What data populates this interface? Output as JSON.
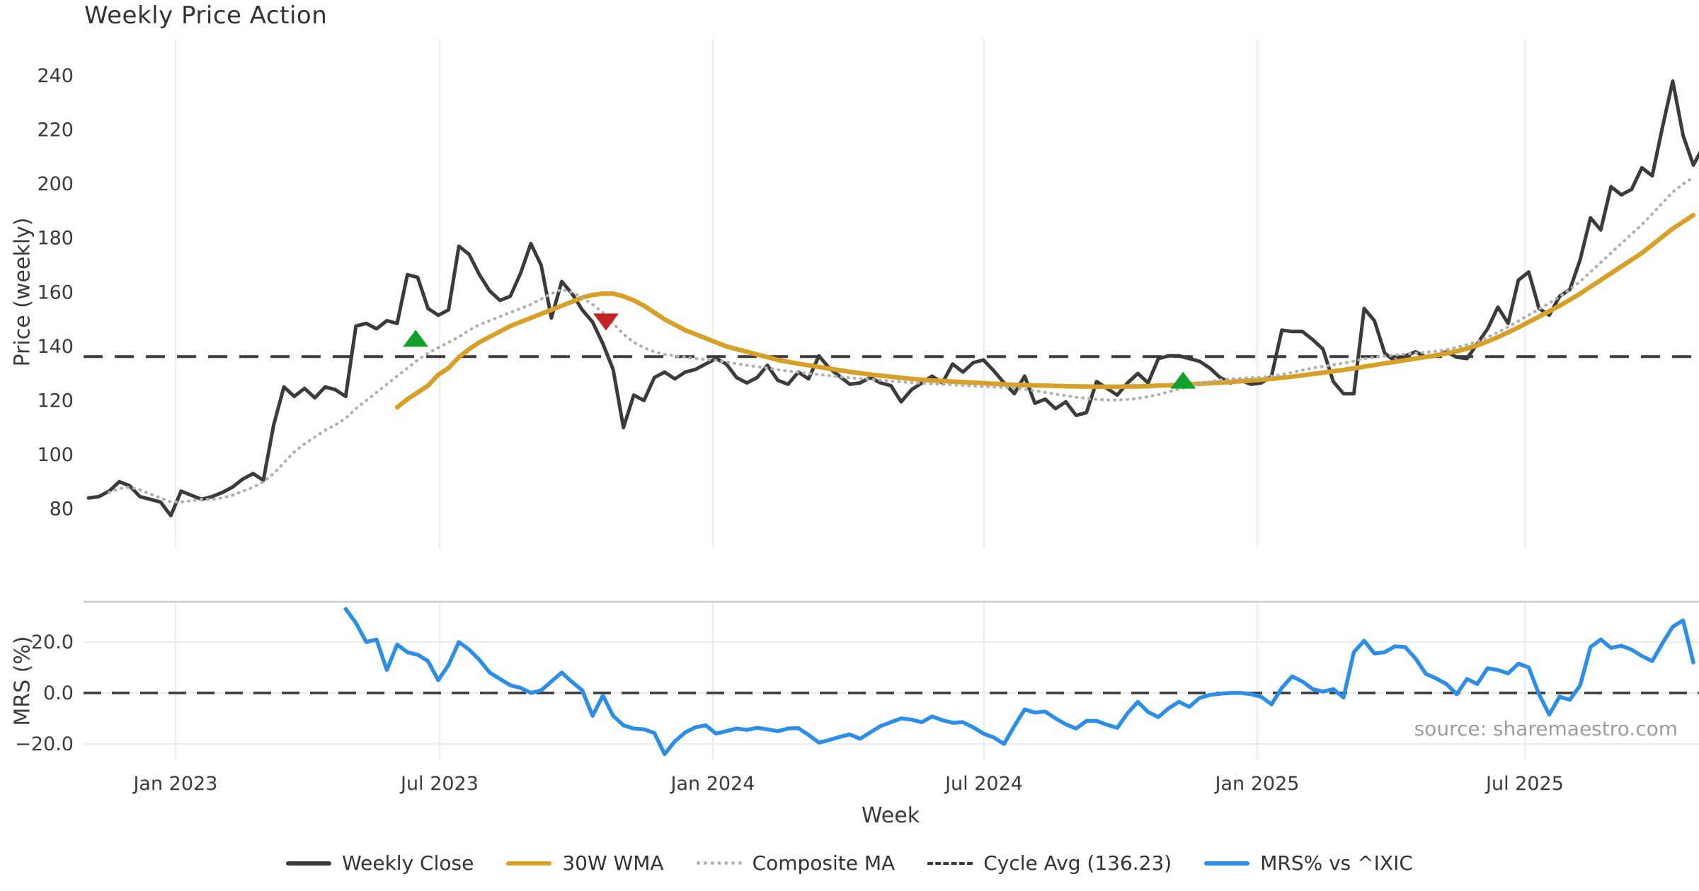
{
  "title": "Weekly Price Action",
  "source_note": "source: sharemaestro.com",
  "chart_data": {
    "type": "line",
    "x_label": "Week",
    "x_ticks": [
      {
        "label": "Jan 2023",
        "week": 8.46
      },
      {
        "label": "Jul 2023",
        "week": 34.13
      },
      {
        "label": "Jan 2024",
        "week": 60.69
      },
      {
        "label": "Jul 2024",
        "week": 87.05
      },
      {
        "label": "Jan 2025",
        "week": 113.61
      },
      {
        "label": "Jul 2025",
        "week": 139.62
      }
    ],
    "n_weeks": 157,
    "panels": [
      {
        "name": "price",
        "y_label": "Price (weekly)",
        "ylim": [
          65.5,
          253.6
        ],
        "y_ticks": [
          {
            "label": "240",
            "value": 240
          },
          {
            "label": "220",
            "value": 220
          },
          {
            "label": "200",
            "value": 200
          },
          {
            "label": "180",
            "value": 180
          },
          {
            "label": "160",
            "value": 160
          },
          {
            "label": "140",
            "value": 140
          },
          {
            "label": "120",
            "value": 120
          },
          {
            "label": "100",
            "value": 100
          },
          {
            "label": "80",
            "value": 80
          }
        ]
      },
      {
        "name": "mrs",
        "y_label": "MRS (%)",
        "ylim": [
          -26.4,
          35.8
        ],
        "y_ticks": [
          {
            "label": "20.0",
            "value": 20
          },
          {
            "label": "0.0",
            "value": 0
          },
          {
            "label": "−20.0",
            "value": -20
          }
        ]
      }
    ],
    "cycle_avg": {
      "label": "Cycle Avg (136.23)",
      "value": 136.23,
      "color": "#3b3b3b"
    },
    "zero_line": {
      "panel": "mrs",
      "value": 0,
      "color": "#3b3b3b"
    },
    "series": [
      {
        "name": "Weekly Close",
        "panel": "price",
        "color": "#3b3b3b",
        "style": "solid",
        "width": 5,
        "values": [
          84,
          84.5,
          86.5,
          90,
          88.5,
          84.5,
          83.5,
          82.5,
          77.5,
          86.5,
          85,
          83.5,
          84.5,
          86,
          88,
          91,
          93,
          90.5,
          111,
          125,
          121.5,
          124.5,
          121,
          125,
          124,
          121.5,
          147.5,
          148.5,
          146.5,
          149.5,
          148.5,
          166.5,
          165.5,
          154,
          151.5,
          153.5,
          177,
          174,
          166.5,
          160.5,
          157,
          158.5,
          167,
          178,
          170,
          150.5,
          164,
          159.5,
          153.5,
          149,
          141,
          131.5,
          110,
          122,
          120,
          128.5,
          130.5,
          128,
          130.5,
          131.5,
          133.5,
          135.5,
          133.5,
          128.5,
          126.5,
          128.5,
          133,
          127.5,
          126,
          130.5,
          128,
          136.5,
          132,
          129,
          126,
          126.5,
          128.5,
          126.5,
          125.5,
          119.5,
          124,
          126.5,
          129,
          126.5,
          133.5,
          130.5,
          134,
          135,
          131,
          126.5,
          122.5,
          129,
          119,
          120.5,
          117,
          119.5,
          114.5,
          115.5,
          127,
          124.5,
          122,
          126.5,
          130,
          126.5,
          135.5,
          136.5,
          136.5,
          135.5,
          134.5,
          132,
          128.5,
          126.5,
          127.5,
          126,
          126.5,
          129,
          146,
          145.5,
          145.5,
          142.5,
          139,
          127,
          122.5,
          122.5,
          154,
          149.5,
          137.5,
          134.5,
          136.5,
          138,
          136,
          136.5,
          138,
          136,
          135.5,
          141,
          146.5,
          154.5,
          148.5,
          164.5,
          167.5,
          154,
          151.5,
          158.5,
          161,
          172,
          187.5,
          183,
          199,
          196,
          198,
          206,
          203,
          221,
          238,
          218,
          207,
          214
        ]
      },
      {
        "name": "30W WMA",
        "panel": "price",
        "color": "#d7a128",
        "style": "solid",
        "width": 6.5,
        "values": [
          null,
          null,
          null,
          null,
          null,
          null,
          null,
          null,
          null,
          null,
          null,
          null,
          null,
          null,
          null,
          null,
          null,
          null,
          null,
          null,
          null,
          null,
          null,
          null,
          null,
          null,
          null,
          null,
          null,
          null,
          117.5,
          120.5,
          123,
          125.5,
          129.5,
          132,
          136,
          139,
          141.5,
          143.5,
          145.5,
          147.5,
          149,
          150.5,
          152,
          153.5,
          155,
          156.5,
          158,
          159,
          159.5,
          159.5,
          158.5,
          157,
          155,
          152.5,
          150,
          148,
          146,
          144.5,
          143,
          141.5,
          140,
          139,
          138,
          137,
          136,
          135,
          134.3,
          133.6,
          133,
          132.4,
          131.8,
          131.2,
          130.6,
          130.1,
          129.6,
          129.2,
          128.8,
          128.4,
          128,
          127.7,
          127.4,
          127.2,
          127,
          126.8,
          126.6,
          126.4,
          126.2,
          126,
          125.8,
          125.7,
          125.6,
          125.5,
          125.4,
          125.3,
          125.2,
          125.2,
          125.1,
          125.1,
          125.1,
          125.2,
          125.2,
          125.3,
          125.5,
          125.6,
          125.8,
          126,
          126.2,
          126.4,
          126.6,
          126.9,
          127.1,
          127.4,
          127.7,
          128,
          128.4,
          128.8,
          129.3,
          129.8,
          130.3,
          130.8,
          131.3,
          131.9,
          132.5,
          133.1,
          133.7,
          134.3,
          134.9,
          135.5,
          136.1,
          136.7,
          137.4,
          138.2,
          139.2,
          140.4,
          141.8,
          143.4,
          145.2,
          147,
          149,
          151,
          153,
          155,
          157.2,
          159.5,
          162,
          164.5,
          167,
          169.5,
          172,
          174.5,
          177.5,
          180.5,
          183.5,
          186,
          188.5
        ]
      },
      {
        "name": "Composite MA",
        "panel": "price",
        "color": "#b0b0b0",
        "style": "dotted",
        "width": 4.2,
        "values": [
          null,
          null,
          86,
          87.5,
          88,
          87,
          85.5,
          84,
          82.5,
          82.5,
          83,
          83.5,
          83.5,
          84,
          85,
          86.5,
          88,
          90,
          93,
          97,
          101,
          104,
          106.5,
          109,
          111,
          113.5,
          117,
          120,
          123,
          126,
          129,
          132,
          135,
          137.5,
          139.5,
          141.5,
          143.5,
          146,
          148,
          149.5,
          151,
          152.5,
          154,
          155.5,
          157.5,
          159.5,
          161,
          160,
          158,
          155.5,
          152.5,
          148.5,
          144.5,
          141.5,
          139.5,
          138,
          137,
          136.5,
          136,
          135.5,
          135.2,
          134.8,
          134.2,
          133.6,
          133,
          132.5,
          132,
          131.4,
          130.9,
          130.4,
          130,
          129.6,
          129.2,
          128.8,
          128.4,
          128.1,
          127.8,
          127.5,
          127.2,
          126.9,
          126.6,
          126.4,
          126.2,
          126,
          125.8,
          125.6,
          125.4,
          125.2,
          125,
          124.8,
          124.6,
          124.2,
          123.6,
          123,
          122.4,
          121.8,
          121.2,
          120.8,
          120.4,
          120.2,
          120.2,
          120.4,
          120.8,
          121.4,
          122.2,
          123.2,
          124.2,
          125.2,
          126.2,
          127,
          127.6,
          128,
          128.2,
          128.4,
          128.6,
          129,
          129.6,
          130.4,
          131.2,
          132,
          132.6,
          133.2,
          133.8,
          134.6,
          135.4,
          136,
          136.4,
          136.8,
          137.2,
          137.5,
          137.8,
          138.2,
          138.8,
          139.6,
          140.6,
          141.8,
          143.4,
          145.2,
          147.2,
          149.4,
          151.6,
          153.8,
          156,
          158.4,
          161,
          164,
          167.5,
          171,
          174.5,
          178,
          181.5,
          185,
          189,
          193,
          197,
          200,
          202.5
        ]
      },
      {
        "name": "MRS% vs ^IXIC",
        "panel": "mrs",
        "color": "#2d8ee8",
        "style": "solid",
        "width": 5.5,
        "values": [
          null,
          null,
          null,
          null,
          null,
          null,
          null,
          null,
          null,
          null,
          null,
          null,
          null,
          null,
          null,
          null,
          null,
          null,
          null,
          null,
          null,
          null,
          null,
          null,
          null,
          33,
          27.5,
          20,
          21,
          9,
          19,
          16,
          15,
          12.5,
          5,
          11,
          20,
          17,
          13,
          8,
          5.5,
          3,
          2,
          0,
          1,
          4.5,
          8,
          4.3,
          1,
          -9,
          -1,
          -9,
          -12.7,
          -14,
          -14.3,
          -15.7,
          -24,
          -19,
          -15.5,
          -13.5,
          -12.7,
          -16,
          -15,
          -14,
          -14.5,
          -13.7,
          -14.3,
          -15,
          -14,
          -13.8,
          -16.5,
          -19.5,
          -18.5,
          -17.3,
          -16.3,
          -18,
          -15.5,
          -13,
          -11.5,
          -10,
          -10.5,
          -11.5,
          -9.2,
          -10.7,
          -11.7,
          -11.5,
          -13.5,
          -16,
          -17.5,
          -20,
          -13,
          -6.5,
          -7.7,
          -7.3,
          -10,
          -12.3,
          -14,
          -11,
          -11,
          -12.5,
          -13.7,
          -8,
          -3.5,
          -7.5,
          -9.5,
          -6,
          -3.5,
          -5.5,
          -2,
          -0.8,
          -0.3,
          0,
          0,
          -0.5,
          -1.5,
          -4.5,
          2,
          6.5,
          4.5,
          1.5,
          0.5,
          1.5,
          -1.8,
          16,
          20.5,
          15.5,
          16,
          18.3,
          18,
          13.5,
          7.5,
          5.7,
          3.5,
          -0.5,
          5.5,
          3.5,
          9.7,
          9,
          7.7,
          11.5,
          10,
          -0.5,
          -8.5,
          -1.5,
          -2.7,
          3,
          18,
          21,
          17.7,
          18.5,
          17,
          14.5,
          12.5,
          19.5,
          26,
          28.5,
          12
        ]
      }
    ],
    "markers": [
      {
        "type": "buy",
        "shape": "triangle-up",
        "color": "#14a02c",
        "week": 31.8,
        "value": 143
      },
      {
        "type": "sell",
        "shape": "triangle-down",
        "color": "#c32424",
        "week": 50.3,
        "value": 149
      },
      {
        "type": "buy",
        "shape": "triangle-up",
        "color": "#14a02c",
        "week": 106.4,
        "value": 127.5
      }
    ],
    "legend": [
      {
        "label": "Weekly Close",
        "color": "#3b3b3b",
        "style": "solid"
      },
      {
        "label": "30W WMA",
        "color": "#d7a128",
        "style": "solid"
      },
      {
        "label": "Composite MA",
        "color": "#b0b0b0",
        "style": "dotted"
      },
      {
        "label": "Cycle Avg (136.23)",
        "color": "#3b3b3b",
        "style": "dashed"
      },
      {
        "label": "MRS% vs ^IXIC",
        "color": "#2d8ee8",
        "style": "solid"
      }
    ],
    "layout_hints": {
      "grid": "light vertical gridlines both panels, horizontal gridlines bottom panel",
      "legend_position": "bottom center"
    }
  }
}
